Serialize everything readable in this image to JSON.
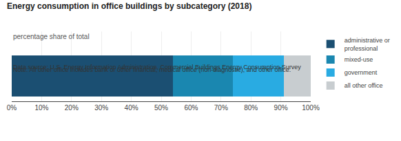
{
  "chart_data": {
    "type": "bar",
    "orientation": "horizontal",
    "stacked": true,
    "title": "Energy consumption in office buildings by subcategory (2018)",
    "subtitle": "percentage share of total",
    "categories": [
      null
    ],
    "series": [
      {
        "name": "administrative or\nprofessional",
        "color": "#1b4f72",
        "values": [
          54
        ]
      },
      {
        "name": "mixed-use",
        "color": "#1a87b0",
        "values": [
          20
        ]
      },
      {
        "name": "government",
        "color": "#29abe2",
        "values": [
          17
        ]
      },
      {
        "name": "all other office",
        "color": "#c8cdd0",
        "values": [
          9
        ]
      }
    ],
    "xlim": [
      0,
      100
    ],
    "xticks": [
      {
        "value": 0,
        "label": "0%"
      },
      {
        "value": 10,
        "label": "10%"
      },
      {
        "value": 20,
        "label": "20%"
      },
      {
        "value": 30,
        "label": "30%"
      },
      {
        "value": 40,
        "label": "40%"
      },
      {
        "value": 50,
        "label": "50%"
      },
      {
        "value": 60,
        "label": "60%"
      },
      {
        "value": 70,
        "label": "70%"
      },
      {
        "value": 80,
        "label": "80%"
      },
      {
        "value": 90,
        "label": "90%"
      },
      {
        "value": 100,
        "label": "100%"
      }
    ],
    "grid": true,
    "legend": "right",
    "annotations": [
      "Data source: U.S. Energy Information Administration, Commercial Buildings Energy Consumption Survey",
      "Note: All other office includes bank or other financial, medical office (non-diagnostic), and other office."
    ]
  }
}
